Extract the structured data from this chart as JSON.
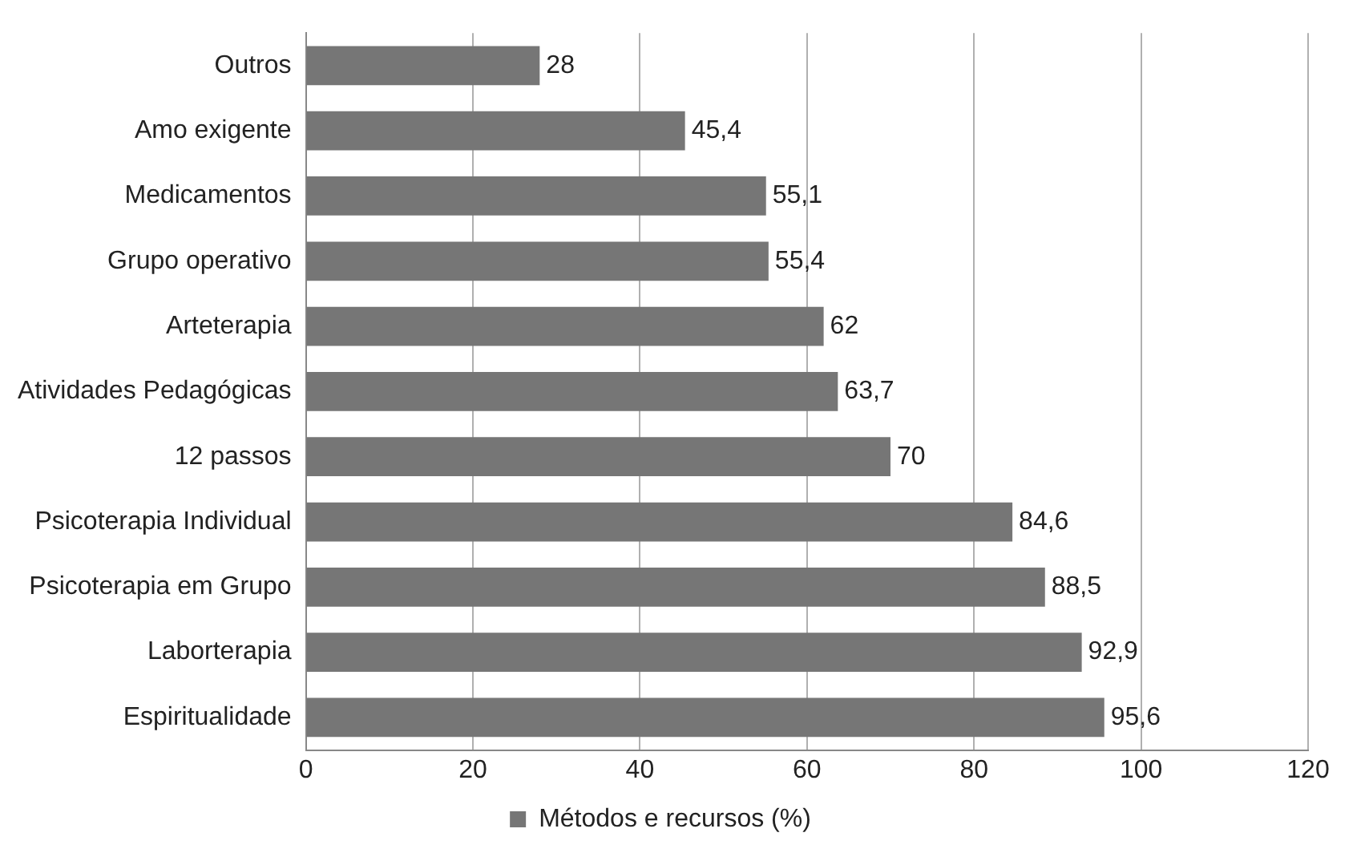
{
  "chart_data": {
    "type": "bar",
    "orientation": "horizontal",
    "categories": [
      "Outros",
      "Amo exigente",
      "Medicamentos",
      "Grupo operativo",
      "Arteterapia",
      "Atividades Pedagógicas",
      "12 passos",
      "Psicoterapia Individual",
      "Psicoterapia em Grupo",
      "Laborterapia",
      "Espiritualidade"
    ],
    "series": [
      {
        "name": "Métodos e recursos (%)",
        "color": "#767676",
        "values": [
          28,
          45.4,
          55.1,
          55.4,
          62,
          63.7,
          70,
          84.6,
          88.5,
          92.9,
          95.6
        ],
        "value_labels": [
          "28",
          "45,4",
          "55,1",
          "55,4",
          "62",
          "63,7",
          "70",
          "84,6",
          "88,5",
          "92,9",
          "95,6"
        ]
      }
    ],
    "xlim": [
      0,
      120
    ],
    "xticks": [
      0,
      20,
      40,
      60,
      80,
      100,
      120
    ],
    "grid": "x",
    "legend": "bottom"
  }
}
